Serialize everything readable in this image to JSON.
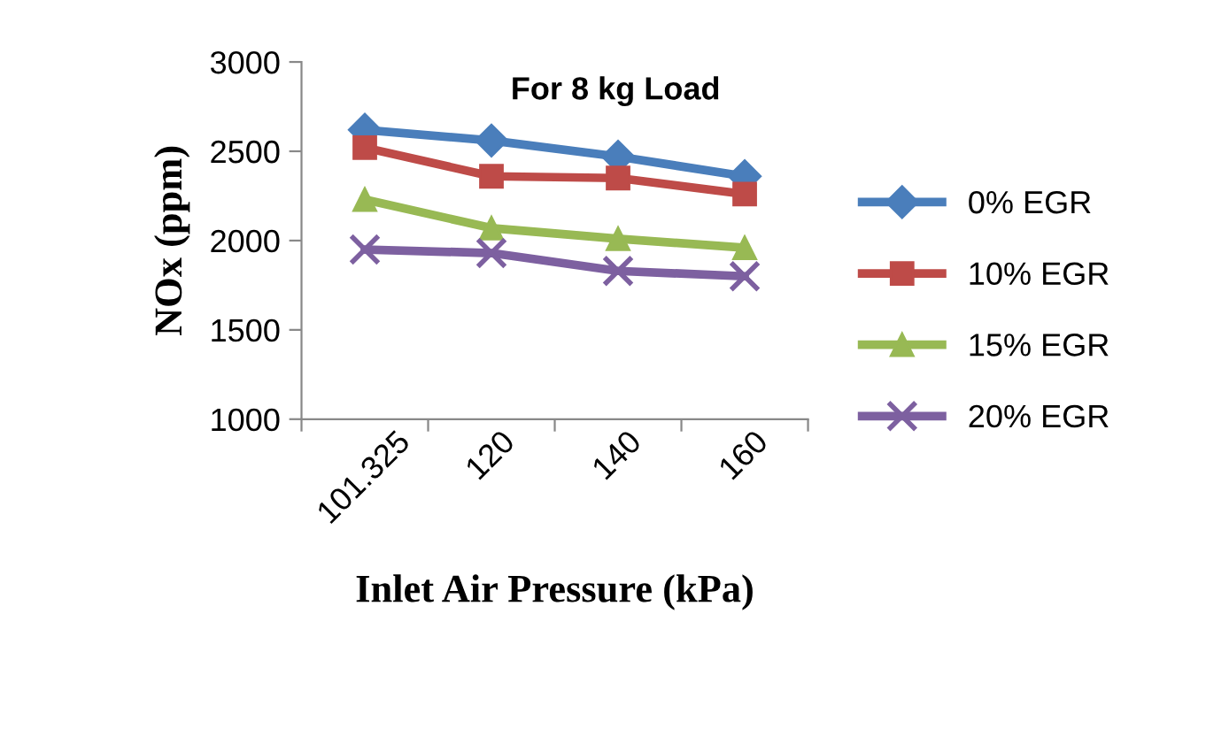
{
  "chart_data": {
    "type": "line",
    "title": "For 8 kg Load",
    "xlabel": "Inlet Air Pressure (kPa)",
    "ylabel": "NOx (ppm)",
    "categories": [
      "101.325",
      "120",
      "140",
      "160"
    ],
    "ylim": [
      1000,
      3000
    ],
    "yticks": [
      1000,
      1500,
      2000,
      2500,
      3000
    ],
    "grid": false,
    "legend": "right",
    "series": [
      {
        "name": "0% EGR",
        "color": "#4a7ebb",
        "marker": "diamond",
        "values": [
          2620,
          2560,
          2470,
          2360
        ]
      },
      {
        "name": "10% EGR",
        "color": "#be4b48",
        "marker": "square",
        "values": [
          2520,
          2360,
          2350,
          2260
        ]
      },
      {
        "name": "15% EGR",
        "color": "#98b954",
        "marker": "triangle",
        "values": [
          2230,
          2070,
          2010,
          1960
        ]
      },
      {
        "name": "20% EGR",
        "color": "#7d60a0",
        "marker": "cross",
        "values": [
          1950,
          1930,
          1830,
          1800
        ]
      }
    ]
  }
}
